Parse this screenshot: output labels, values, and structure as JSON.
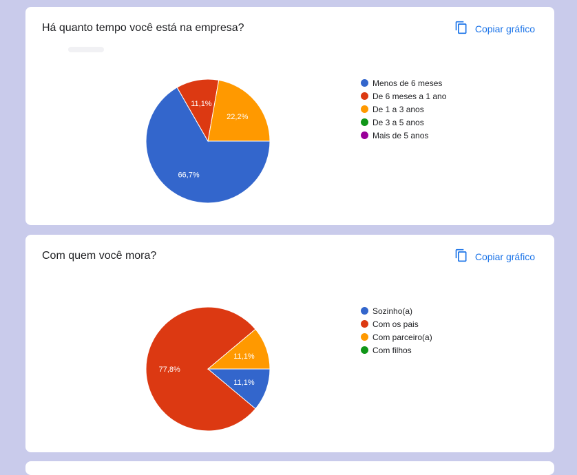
{
  "charts": [
    {
      "title": "Há quanto tempo você está na empresa?",
      "copy_label": "Copiar gráfico"
    },
    {
      "title": "Com quem você mora?",
      "copy_label": "Copiar gráfico"
    }
  ],
  "chart_data": [
    {
      "type": "pie",
      "title": "Há quanto tempo você está na empresa?",
      "categories": [
        "Menos de 6 meses",
        "De 6 meses a 1 ano",
        "De 1 a 3 anos",
        "De 3 a 5 anos",
        "Mais de 5 anos"
      ],
      "values": [
        66.7,
        11.1,
        22.2,
        0,
        0
      ],
      "labels": [
        "66,7%",
        "11,1%",
        "22,2%",
        "",
        ""
      ],
      "colors": [
        "#3366cc",
        "#dc3912",
        "#ff9900",
        "#109618",
        "#990099"
      ],
      "legend": "right"
    },
    {
      "type": "pie",
      "title": "Com quem você mora?",
      "categories": [
        "Sozinho(a)",
        "Com os pais",
        "Com parceiro(a)",
        "Com filhos"
      ],
      "values": [
        11.1,
        77.8,
        11.1,
        0
      ],
      "labels": [
        "11,1%",
        "77,8%",
        "11,1%",
        ""
      ],
      "colors": [
        "#3366cc",
        "#dc3912",
        "#ff9900",
        "#109618"
      ],
      "legend": "right"
    }
  ]
}
